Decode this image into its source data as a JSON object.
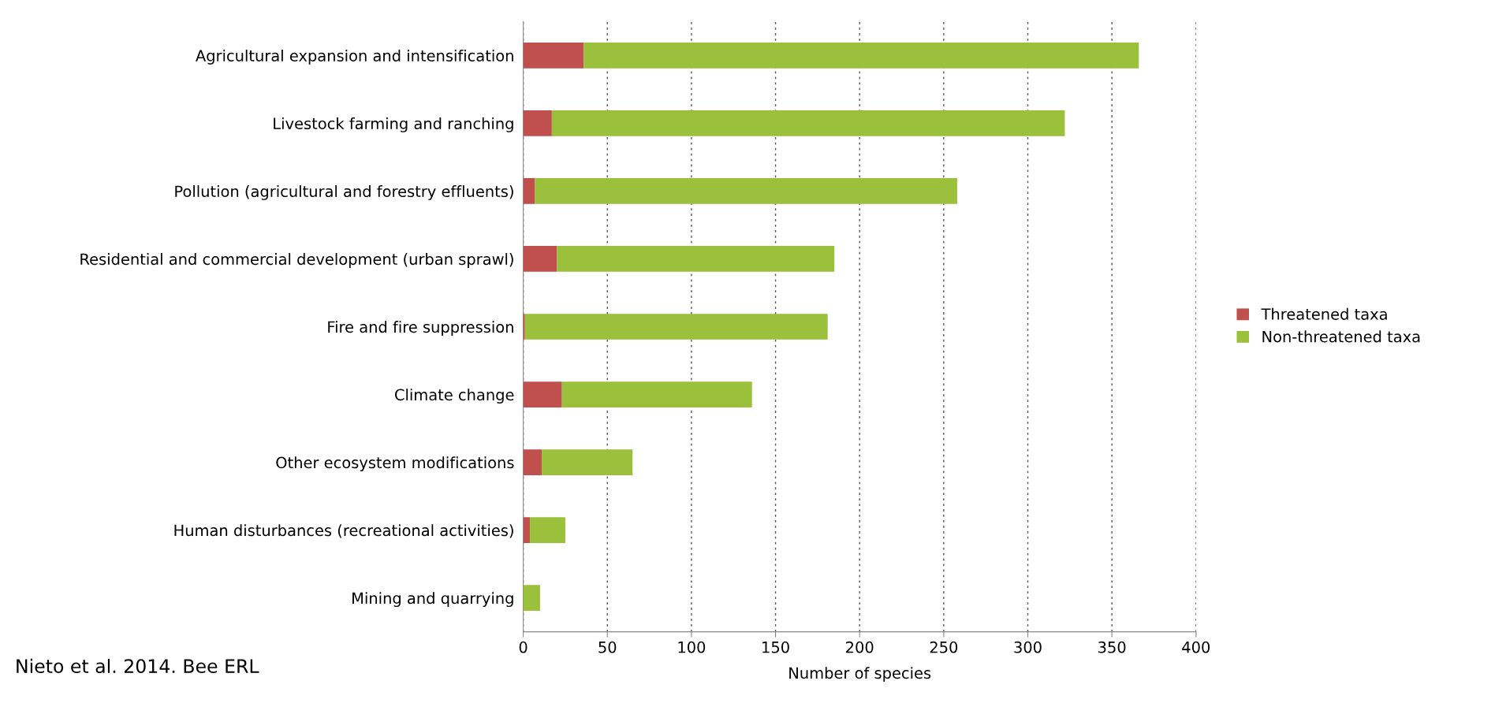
{
  "chart_data": {
    "type": "bar",
    "orientation": "horizontal",
    "stacked": true,
    "categories": [
      "Agricultural expansion and intensification",
      "Livestock farming and ranching",
      "Pollution (agricultural and forestry effluents)",
      "Residential and commercial development (urban sprawl)",
      "Fire and fire suppression",
      "Climate change",
      "Other ecosystem modifications",
      "Human disturbances (recreational activities)",
      "Mining and quarrying"
    ],
    "series": [
      {
        "name": "Threatened taxa",
        "color": "#c0504d",
        "values": [
          36,
          17,
          7,
          20,
          1,
          23,
          11,
          4,
          0
        ]
      },
      {
        "name": "Non-threatened taxa",
        "color": "#9bc13c",
        "values": [
          330,
          305,
          251,
          165,
          180,
          113,
          54,
          21,
          10
        ]
      }
    ],
    "xlabel": "Number of species",
    "xlim": [
      0,
      400
    ],
    "xticks": [
      0,
      50,
      100,
      150,
      200,
      250,
      300,
      350,
      400
    ],
    "grid": "x",
    "legend": "right",
    "annotations": [
      "Nieto et al. 2014. Bee ERL"
    ]
  }
}
